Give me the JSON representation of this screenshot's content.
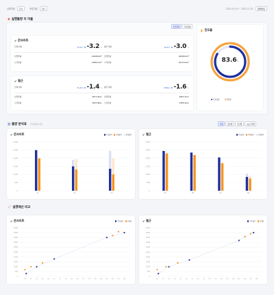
{
  "topbar": {
    "left_filter_label_1": "실행월별",
    "left_filter_value_1": "(가)",
    "left_filter_label_2": "목표월별",
    "left_filter_value_2": "(가)",
    "right_date_range": "2022.01.01~ 2022.12.31",
    "right_button": "업데이트"
  },
  "section1": {
    "title": "실행물량 이 미율",
    "tabs": [
      "실행물량",
      "목표물량"
    ],
    "cards": [
      {
        "title": "콘크리트",
        "stats": [
          {
            "label": "현재 대비",
            "small": "81.2m³",
            "big": "-3.2",
            "unit": "%"
          },
          {
            "label": "평균 대비",
            "small": "96.4m³",
            "big": "-3.0",
            "unit": "%"
          }
        ],
        "rows": [
          {
            "l1": "실행물량",
            "v1": "14098.8m³",
            "l2": "실행물량",
            "v2": "16008.4m³"
          },
          {
            "l1": "누적물량",
            "v1": "13863.4m³",
            "l2": "누적물량",
            "v2": "16715.6m³"
          }
        ]
      },
      {
        "title": "철근",
        "stats": [
          {
            "label": "현재 대비",
            "small": "41.2ton",
            "big": "-1.4",
            "unit": "%"
          },
          {
            "label": "평균 대비",
            "small": "38.8ton",
            "big": "-1.6",
            "unit": "%"
          }
        ],
        "rows": [
          {
            "l1": "실행물량",
            "v1": "2873.4ton",
            "l2": "실행물량",
            "v2": "2663.7ton"
          },
          {
            "l1": "누적물량",
            "v1": "2833.8ton",
            "l2": "누적물량",
            "v2": "2385.2ton"
          }
        ]
      }
    ],
    "progress": {
      "title": "진도율",
      "value": "83.6",
      "unit": "%",
      "fraction": 0.836,
      "legend": [
        "목표물량",
        "실행물"
      ],
      "colors": {
        "outer": "#f7a23a",
        "inner": "#1f2fa0",
        "track": "#e6e8f0"
      }
    }
  },
  "section2": {
    "title": "물량 분석표",
    "note": "단위(불량지: 원)",
    "tabs": [
      "전체",
      "월간별",
      "주간별",
      "시공구역별"
    ],
    "legend": [
      "목표물량",
      "현재물량",
      "설계물량"
    ],
    "colors": {
      "a": "#1f2fa0",
      "b": "#f7931e",
      "c": "#dcdff3",
      "d": "#fde6cc"
    },
    "charts": [
      {
        "title": "콘크리트",
        "chart_data": {
          "type": "bar",
          "categories": [
            "C1",
            "C2",
            "C3"
          ],
          "series": [
            {
              "values": [
                2500,
                1500,
                1350
              ]
            },
            {
              "values": [
                2000,
                1300,
                1000
              ]
            },
            {
              "values": [
                2500,
                1900,
                2450
              ]
            },
            {
              "values": [
                2000,
                1950,
                2000
              ]
            }
          ],
          "ylim": [
            0,
            3000
          ],
          "yticks": [
            "3,000",
            "2,500",
            "2,000",
            "1,500",
            "1,000",
            "500",
            "0"
          ]
        }
      },
      {
        "title": "철근",
        "chart_data": {
          "type": "bar",
          "categories": [
            "B1",
            "B2",
            "B3",
            "B4"
          ],
          "series": [
            {
              "values": [
                2450,
                2350,
                2050,
                850
              ]
            },
            {
              "values": [
                2300,
                2200,
                1700,
                750
              ]
            },
            {
              "values": [
                2450,
                2350,
                2050,
                1050
              ]
            },
            {
              "values": [
                2300,
                2200,
                1700,
                900
              ]
            }
          ],
          "ylim": [
            0,
            3000
          ],
          "yticks": [
            "3,000",
            "2,500",
            "2,000",
            "1,500",
            "1,000",
            "500",
            "0"
          ]
        }
      }
    ]
  },
  "section3": {
    "title": "실행예산 비교",
    "legend": [
      "목표물량",
      "실행물"
    ],
    "colors": {
      "a": "#1f2fa0",
      "b": "#f7931e"
    },
    "charts": [
      {
        "title": "콘크리트",
        "chart_data": {
          "type": "scatter",
          "series": [
            {
              "name": "목표물량",
              "x": [
                12,
                30,
                60,
                150,
                180
              ],
              "y": [
                300,
                1000,
                1800,
                4000,
                4500
              ]
            },
            {
              "name": "실행물",
              "x": [
                10,
                20,
                40,
                160,
                170
              ],
              "y": [
                700,
                1000,
                1400,
                4200,
                4600
              ]
            }
          ],
          "xticks": [
            10,
            20,
            30,
            40,
            50,
            60,
            70,
            80,
            90,
            100,
            110,
            120,
            130,
            140,
            150,
            160,
            170,
            180
          ],
          "xlim": [
            0,
            190
          ],
          "ylim": [
            0,
            5000
          ],
          "yticks": [
            "5,000",
            "4,500",
            "4,000",
            "3,500",
            "3,000",
            "2,500",
            "2,000",
            "1,500",
            "1,000",
            "500",
            "0"
          ]
        }
      },
      {
        "title": "철근",
        "chart_data": {
          "type": "scatter",
          "series": [
            {
              "name": "목표물량",
              "x": [
                12,
                30,
                65,
                150,
                175
              ],
              "y": [
                300,
                1000,
                1700,
                3700,
                4500
              ]
            },
            {
              "name": "실행물",
              "x": [
                10,
                25,
                45,
                160,
                170
              ],
              "y": [
                700,
                1000,
                1400,
                4100,
                4400
              ]
            }
          ],
          "xticks": [
            10,
            20,
            30,
            40,
            50,
            60,
            70,
            80,
            90,
            100,
            110,
            120,
            130,
            140,
            150,
            160,
            170,
            180
          ],
          "xlim": [
            0,
            190
          ],
          "ylim": [
            0,
            5000
          ],
          "yticks": [
            "5,000",
            "4,500",
            "4,000",
            "3,500",
            "3,000",
            "2,500",
            "2,000",
            "1,500",
            "1,000",
            "500",
            "0"
          ]
        }
      }
    ]
  }
}
